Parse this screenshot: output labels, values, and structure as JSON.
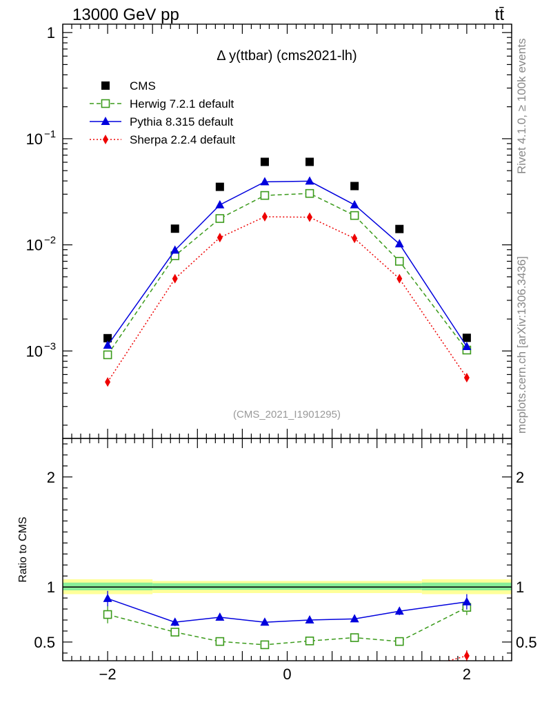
{
  "header": {
    "energy_label": "13000 GeV pp",
    "process_label": "tt̄"
  },
  "side_labels": {
    "rivet": "Rivet 4.1.0, ≥ 100k events",
    "mcplots": "mcplots.cern.ch [arXiv:1306.3436]"
  },
  "colors": {
    "cms": "#000000",
    "herwig": "#3a9a1a",
    "pythia": "#0000dd",
    "sherpa": "#ee0000",
    "band_inner": "#88ee99",
    "band_outer": "#ffff99"
  },
  "chart_data": [
    {
      "type": "line",
      "title": "Δ y(ttbar) (cms2021-lh)",
      "watermark": "(CMS_2021_I1901295)",
      "xlabel": "",
      "ylabel": "",
      "yscale": "log",
      "xlim": [
        -2.5,
        2.5
      ],
      "ylim": [
        0.00015,
        1.2
      ],
      "x_ticks": [
        -2,
        0,
        2
      ],
      "y_ticks": [
        {
          "value": 1,
          "base": "1",
          "exp": ""
        },
        {
          "value": 0.1,
          "base": "10",
          "exp": "−1"
        },
        {
          "value": 0.01,
          "base": "10",
          "exp": "−2"
        },
        {
          "value": 0.001,
          "base": "10",
          "exp": "−3"
        }
      ],
      "x": [
        -2,
        -1.25,
        -0.75,
        -0.25,
        0.25,
        0.75,
        1.25,
        2
      ],
      "bin_edges": [
        -2.5,
        -1.5,
        -1.0,
        -0.5,
        0.0,
        0.5,
        1.0,
        1.5,
        2.5
      ],
      "legend_position": "top-left",
      "series": [
        {
          "name": "CMS",
          "key": "cms",
          "values": [
            0.00132,
            0.0142,
            0.0352,
            0.0605,
            0.0605,
            0.0358,
            0.0141,
            0.00133
          ]
        },
        {
          "name": "Herwig 7.2.1 default",
          "key": "herwig",
          "values": [
            0.00092,
            0.0079,
            0.0177,
            0.0292,
            0.0305,
            0.0189,
            0.007,
            0.00102
          ]
        },
        {
          "name": "Pythia 8.315 default",
          "key": "pythia",
          "values": [
            0.00113,
            0.0089,
            0.0238,
            0.0392,
            0.0398,
            0.0238,
            0.0102,
            0.0011
          ]
        },
        {
          "name": "Sherpa 2.2.4 default",
          "key": "sherpa",
          "values": [
            0.00051,
            0.0048,
            0.0117,
            0.0184,
            0.0182,
            0.0115,
            0.0048,
            0.00056
          ]
        }
      ]
    },
    {
      "type": "line",
      "title": "",
      "xlabel": "",
      "ylabel": "Ratio to CMS",
      "yscale": "linear",
      "xlim": [
        -2.5,
        2.5
      ],
      "ylim": [
        0.33,
        2.35
      ],
      "x_ticks": [
        -2,
        0,
        2
      ],
      "y_ticks": [
        0.5,
        1,
        2
      ],
      "reference_line": 1,
      "uncertainty_bands": {
        "bin_edges": [
          -2.5,
          -1.5,
          1.5,
          2.5
        ],
        "inner": [
          [
            0.97,
            1.04
          ],
          [
            0.975,
            1.035
          ],
          [
            0.97,
            1.04
          ]
        ],
        "outer": [
          [
            0.935,
            1.07
          ],
          [
            0.945,
            1.055
          ],
          [
            0.935,
            1.07
          ]
        ]
      },
      "x": [
        -2,
        -1.25,
        -0.75,
        -0.25,
        0.25,
        0.75,
        1.25,
        2
      ],
      "series": [
        {
          "name": "Herwig 7.2.1 default",
          "key": "herwig",
          "values": [
            0.75,
            0.59,
            0.505,
            0.475,
            0.51,
            0.54,
            0.505,
            0.815
          ],
          "errors": [
            0.08,
            0.035,
            0.015,
            0.012,
            0.012,
            0.015,
            0.035,
            0.07
          ]
        },
        {
          "name": "Pythia 8.315 default",
          "key": "pythia",
          "values": [
            0.895,
            0.68,
            0.725,
            0.68,
            0.7,
            0.71,
            0.78,
            0.865
          ],
          "errors": [
            0.07,
            0.035,
            0.02,
            0.012,
            0.012,
            0.02,
            0.035,
            0.07
          ]
        },
        {
          "name": "Sherpa 2.2.4 default",
          "key": "sherpa",
          "values": [
            null,
            null,
            null,
            null,
            null,
            null,
            null,
            0.375
          ],
          "errors": [
            0,
            0,
            0,
            0,
            0,
            0,
            0,
            0.05
          ]
        }
      ]
    }
  ]
}
